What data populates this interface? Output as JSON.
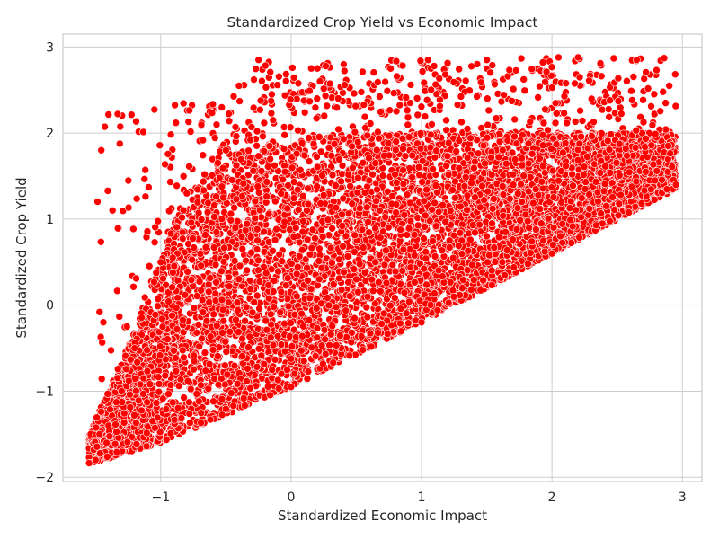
{
  "chart_data": {
    "type": "scatter",
    "title": "Standardized Crop Yield vs Economic Impact",
    "xlabel": "Standardized Economic Impact",
    "ylabel": "Standardized Crop Yield",
    "xlim": [
      -1.75,
      3.15
    ],
    "ylim": [
      -2.05,
      3.15
    ],
    "xticks": [
      -1,
      0,
      1,
      2,
      3
    ],
    "yticks": [
      -2,
      -1,
      0,
      1,
      2,
      3
    ],
    "xtick_labels": [
      "−1",
      "0",
      "1",
      "2",
      "3"
    ],
    "ytick_labels": [
      "−2",
      "−1",
      "0",
      "1",
      "2",
      "3"
    ],
    "grid": true,
    "marker_color": "#ff0000",
    "marker_edge_color": "#ffffff",
    "approx_point_count": 8000,
    "point_cloud_region": {
      "description_shape": "wedge widening to the right",
      "x_range": [
        -1.55,
        2.95
      ],
      "lower_boundary": [
        [
          -1.55,
          -1.85
        ],
        [
          -1.0,
          -1.6
        ],
        [
          0.0,
          -0.95
        ],
        [
          1.0,
          -0.2
        ],
        [
          2.0,
          0.6
        ],
        [
          2.95,
          1.35
        ]
      ],
      "upper_boundary_dense": [
        [
          -1.55,
          -1.5
        ],
        [
          -1.2,
          -0.3
        ],
        [
          -1.0,
          0.6
        ],
        [
          -0.8,
          1.3
        ],
        [
          -0.5,
          1.75
        ],
        [
          0.0,
          1.95
        ],
        [
          1.0,
          2.0
        ],
        [
          2.0,
          2.0
        ],
        [
          2.95,
          2.0
        ]
      ],
      "upper_boundary_sparse": [
        [
          -0.5,
          2.35
        ],
        [
          -0.25,
          2.85
        ],
        [
          1.0,
          2.85
        ],
        [
          2.0,
          2.88
        ],
        [
          2.95,
          2.88
        ]
      ]
    },
    "sample_points": [
      {
        "x": -1.5,
        "y": -1.8
      },
      {
        "x": -1.4,
        "y": -1.4
      },
      {
        "x": -1.3,
        "y": -1.0
      },
      {
        "x": -1.2,
        "y": -0.5
      },
      {
        "x": -1.0,
        "y": 0.5
      },
      {
        "x": -0.8,
        "y": 1.3
      },
      {
        "x": -0.5,
        "y": 1.8
      },
      {
        "x": -0.4,
        "y": 2.55
      },
      {
        "x": -0.25,
        "y": 2.85
      },
      {
        "x": 0.0,
        "y": -0.95
      },
      {
        "x": 0.5,
        "y": 0.3
      },
      {
        "x": 1.0,
        "y": -0.2
      },
      {
        "x": 1.05,
        "y": 2.85
      },
      {
        "x": 1.5,
        "y": 2.85
      },
      {
        "x": 2.0,
        "y": 0.6
      },
      {
        "x": 2.05,
        "y": 2.88
      },
      {
        "x": 2.2,
        "y": 2.88
      },
      {
        "x": 2.65,
        "y": 2.85
      },
      {
        "x": 2.9,
        "y": 2.55
      },
      {
        "x": 2.95,
        "y": 1.4
      }
    ]
  }
}
